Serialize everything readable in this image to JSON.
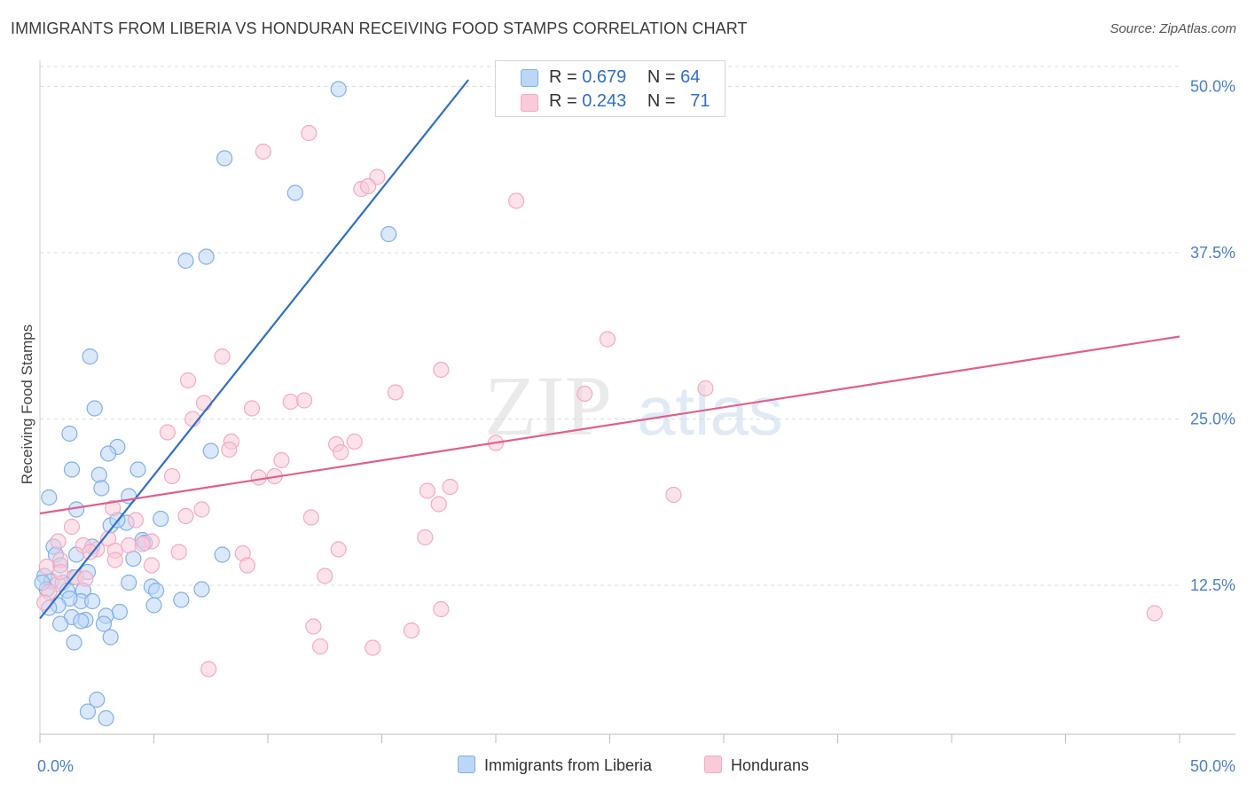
{
  "title": "IMMIGRANTS FROM LIBERIA VS HONDURAN RECEIVING FOOD STAMPS CORRELATION CHART",
  "source": "Source: ZipAtlas.com",
  "watermark": {
    "zip": "ZIP",
    "atlas": "atlas"
  },
  "legend": {
    "rows": [
      {
        "r_label": "R = ",
        "r_value": "0.679",
        "n_label": "N = ",
        "n_value": "64"
      },
      {
        "r_label": "R = ",
        "r_value": "0.243",
        "n_label": "N = ",
        "n_value": "71"
      }
    ]
  },
  "chart_data": {
    "type": "scatter",
    "title": "IMMIGRANTS FROM LIBERIA VS HONDURAN RECEIVING FOOD STAMPS CORRELATION CHART",
    "xlabel": "",
    "ylabel": "Receiving Food Stamps",
    "xlim": [
      0,
      50
    ],
    "ylim": [
      1.3,
      51.5
    ],
    "x_tick_labels": [
      "0.0%",
      "50.0%"
    ],
    "y_tick_values": [
      12.5,
      25.0,
      37.5,
      50.0
    ],
    "y_tick_labels": [
      "12.5%",
      "25.0%",
      "37.5%",
      "50.0%"
    ],
    "grid": true,
    "legend_position": "top-center",
    "series": [
      {
        "name": "Immigrants from Liberia",
        "color": "#7fb0e8",
        "line_color": "#2f6fc4",
        "trend": {
          "x": [
            0.0,
            18.8
          ],
          "y": [
            10.0,
            50.5
          ]
        },
        "points": [
          [
            13.1,
            49.8
          ],
          [
            8.1,
            44.6
          ],
          [
            11.2,
            42.0
          ],
          [
            15.3,
            38.9
          ],
          [
            6.4,
            36.9
          ],
          [
            7.3,
            37.2
          ],
          [
            2.2,
            29.7
          ],
          [
            2.4,
            25.8
          ],
          [
            1.3,
            23.9
          ],
          [
            3.4,
            22.9
          ],
          [
            3.0,
            22.4
          ],
          [
            7.5,
            22.6
          ],
          [
            1.4,
            21.2
          ],
          [
            4.3,
            21.2
          ],
          [
            2.6,
            20.8
          ],
          [
            0.4,
            19.1
          ],
          [
            2.7,
            19.8
          ],
          [
            3.9,
            19.2
          ],
          [
            1.6,
            18.2
          ],
          [
            5.3,
            17.5
          ],
          [
            3.1,
            17.0
          ],
          [
            3.8,
            17.2
          ],
          [
            3.4,
            17.4
          ],
          [
            0.6,
            15.4
          ],
          [
            1.6,
            14.8
          ],
          [
            2.3,
            15.4
          ],
          [
            4.5,
            15.9
          ],
          [
            8.0,
            14.8
          ],
          [
            0.7,
            14.8
          ],
          [
            4.1,
            14.5
          ],
          [
            0.9,
            14.0
          ],
          [
            1.5,
            13.1
          ],
          [
            2.1,
            13.5
          ],
          [
            0.2,
            13.2
          ],
          [
            0.5,
            12.8
          ],
          [
            1.0,
            12.7
          ],
          [
            3.9,
            12.7
          ],
          [
            4.9,
            12.4
          ],
          [
            1.2,
            12.1
          ],
          [
            0.3,
            12.2
          ],
          [
            1.9,
            12.1
          ],
          [
            5.1,
            12.1
          ],
          [
            7.1,
            12.2
          ],
          [
            1.8,
            11.3
          ],
          [
            2.3,
            11.3
          ],
          [
            1.3,
            11.5
          ],
          [
            6.2,
            11.4
          ],
          [
            0.8,
            11.0
          ],
          [
            5.0,
            11.0
          ],
          [
            3.5,
            10.5
          ],
          [
            1.4,
            10.1
          ],
          [
            2.9,
            10.2
          ],
          [
            2.0,
            9.9
          ],
          [
            1.8,
            9.8
          ],
          [
            2.8,
            9.6
          ],
          [
            0.9,
            9.6
          ],
          [
            3.1,
            8.6
          ],
          [
            1.5,
            8.2
          ],
          [
            2.5,
            3.9
          ],
          [
            2.1,
            3.0
          ],
          [
            2.9,
            2.5
          ],
          [
            0.4,
            10.8
          ],
          [
            4.6,
            15.7
          ],
          [
            0.1,
            12.7
          ]
        ]
      },
      {
        "name": "Hondurans",
        "color": "#f4a9c0",
        "line_color": "#e0608c",
        "trend": {
          "x": [
            0.0,
            50.0
          ],
          "y": [
            17.9,
            31.2
          ]
        },
        "points": [
          [
            11.8,
            46.5
          ],
          [
            9.8,
            45.1
          ],
          [
            14.8,
            43.2
          ],
          [
            14.1,
            42.3
          ],
          [
            14.4,
            42.5
          ],
          [
            20.9,
            41.4
          ],
          [
            24.9,
            31.0
          ],
          [
            8.0,
            29.7
          ],
          [
            17.6,
            28.7
          ],
          [
            6.5,
            27.9
          ],
          [
            15.6,
            27.0
          ],
          [
            23.9,
            26.9
          ],
          [
            29.2,
            27.3
          ],
          [
            7.2,
            26.2
          ],
          [
            11.0,
            26.3
          ],
          [
            11.6,
            26.4
          ],
          [
            9.3,
            25.8
          ],
          [
            6.7,
            25.0
          ],
          [
            5.6,
            24.0
          ],
          [
            8.4,
            23.3
          ],
          [
            13.0,
            23.1
          ],
          [
            13.8,
            23.3
          ],
          [
            20.0,
            23.2
          ],
          [
            8.3,
            22.7
          ],
          [
            13.2,
            22.5
          ],
          [
            10.6,
            21.9
          ],
          [
            5.8,
            20.7
          ],
          [
            9.6,
            20.6
          ],
          [
            10.3,
            20.7
          ],
          [
            17.0,
            19.6
          ],
          [
            18.0,
            19.9
          ],
          [
            27.8,
            19.3
          ],
          [
            3.2,
            18.3
          ],
          [
            7.1,
            18.2
          ],
          [
            17.5,
            18.6
          ],
          [
            6.4,
            17.7
          ],
          [
            11.9,
            17.6
          ],
          [
            1.4,
            16.9
          ],
          [
            4.2,
            17.4
          ],
          [
            3.0,
            16.0
          ],
          [
            16.9,
            16.1
          ],
          [
            0.8,
            15.8
          ],
          [
            1.9,
            15.5
          ],
          [
            4.9,
            15.8
          ],
          [
            2.5,
            15.2
          ],
          [
            3.9,
            15.5
          ],
          [
            4.5,
            15.6
          ],
          [
            2.2,
            15.0
          ],
          [
            3.3,
            15.1
          ],
          [
            6.1,
            15.0
          ],
          [
            8.9,
            14.9
          ],
          [
            13.1,
            15.2
          ],
          [
            0.9,
            14.4
          ],
          [
            3.3,
            14.4
          ],
          [
            9.1,
            14.0
          ],
          [
            4.9,
            14.0
          ],
          [
            0.3,
            13.9
          ],
          [
            1.6,
            13.1
          ],
          [
            12.5,
            13.2
          ],
          [
            0.8,
            12.6
          ],
          [
            0.4,
            12.0
          ],
          [
            0.2,
            11.2
          ],
          [
            2.0,
            13.0
          ],
          [
            16.3,
            9.1
          ],
          [
            17.6,
            10.7
          ],
          [
            12.0,
            9.4
          ],
          [
            48.9,
            10.4
          ],
          [
            12.3,
            7.9
          ],
          [
            14.6,
            7.8
          ],
          [
            7.4,
            6.2
          ],
          [
            0.9,
            13.5
          ]
        ]
      }
    ]
  }
}
